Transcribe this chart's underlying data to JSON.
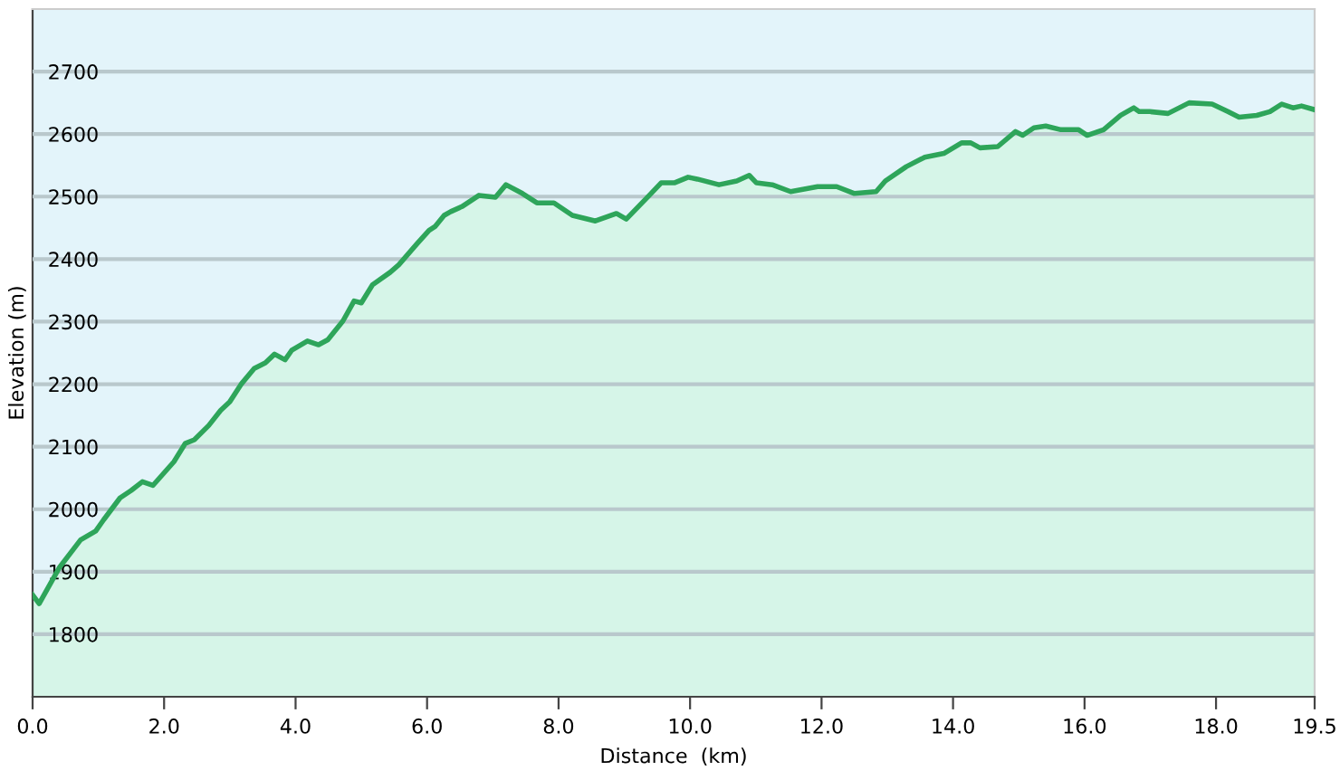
{
  "chart_data": {
    "type": "area",
    "xlabel": "Distance  (km)",
    "ylabel": "Elevation (m)",
    "xlim": [
      0,
      19.5
    ],
    "ylim": [
      1700,
      2800
    ],
    "xticks": [
      {
        "value": 0,
        "label": "0.0"
      },
      {
        "value": 2,
        "label": "2.0"
      },
      {
        "value": 4,
        "label": "4.0"
      },
      {
        "value": 6,
        "label": "6.0"
      },
      {
        "value": 8,
        "label": "8.0"
      },
      {
        "value": 10,
        "label": "10.0"
      },
      {
        "value": 12,
        "label": "12.0"
      },
      {
        "value": 14,
        "label": "14.0"
      },
      {
        "value": 16,
        "label": "16.0"
      },
      {
        "value": 18,
        "label": "18.0"
      },
      {
        "value": 19.5,
        "label": "19.5"
      }
    ],
    "yticks": [
      1800,
      1900,
      2000,
      2100,
      2200,
      2300,
      2400,
      2500,
      2600,
      2700
    ],
    "grid": "y",
    "legend": false,
    "series": [
      {
        "color": "#2ea55a",
        "x": [
          0,
          0.1,
          0.41,
          0.73,
          0.96,
          1.08,
          1.33,
          1.5,
          1.67,
          1.83,
          2.15,
          2.32,
          2.46,
          2.68,
          2.86,
          3.0,
          3.18,
          3.37,
          3.54,
          3.68,
          3.84,
          3.94,
          4.18,
          4.35,
          4.49,
          4.72,
          4.89,
          5.0,
          5.17,
          5.44,
          5.57,
          5.85,
          6.03,
          6.12,
          6.26,
          6.36,
          6.53,
          6.79,
          7.04,
          7.2,
          7.45,
          7.67,
          7.93,
          8.21,
          8.56,
          8.88,
          9.03,
          9.38,
          9.56,
          9.76,
          9.97,
          10.11,
          10.44,
          10.71,
          10.9,
          11.01,
          11.25,
          11.53,
          11.94,
          12.23,
          12.5,
          12.83,
          12.97,
          13.29,
          13.57,
          13.86,
          14.13,
          14.27,
          14.41,
          14.68,
          14.95,
          15.06,
          15.23,
          15.41,
          15.64,
          15.91,
          16.04,
          16.29,
          16.55,
          16.75,
          16.83,
          16.99,
          17.27,
          17.59,
          17.94,
          18.18,
          18.35,
          18.62,
          18.82,
          19.0,
          19.17,
          19.3,
          19.5
        ],
        "values": [
          1863,
          1849,
          1907,
          1951,
          1965,
          1983,
          2018,
          2030,
          2044,
          2038,
          2076,
          2105,
          2111,
          2134,
          2158,
          2172,
          2201,
          2225,
          2234,
          2248,
          2239,
          2254,
          2269,
          2263,
          2271,
          2301,
          2333,
          2330,
          2359,
          2379,
          2391,
          2425,
          2446,
          2452,
          2470,
          2476,
          2484,
          2502,
          2499,
          2519,
          2505,
          2490,
          2490,
          2470,
          2461,
          2473,
          2464,
          2502,
          2522,
          2522,
          2531,
          2528,
          2519,
          2525,
          2534,
          2522,
          2519,
          2508,
          2516,
          2516,
          2505,
          2508,
          2525,
          2548,
          2563,
          2569,
          2586,
          2586,
          2578,
          2580,
          2604,
          2598,
          2610,
          2613,
          2607,
          2607,
          2598,
          2607,
          2630,
          2642,
          2636,
          2636,
          2633,
          2650,
          2648,
          2636,
          2627,
          2630,
          2636,
          2648,
          2642,
          2645,
          2639
        ]
      }
    ]
  }
}
